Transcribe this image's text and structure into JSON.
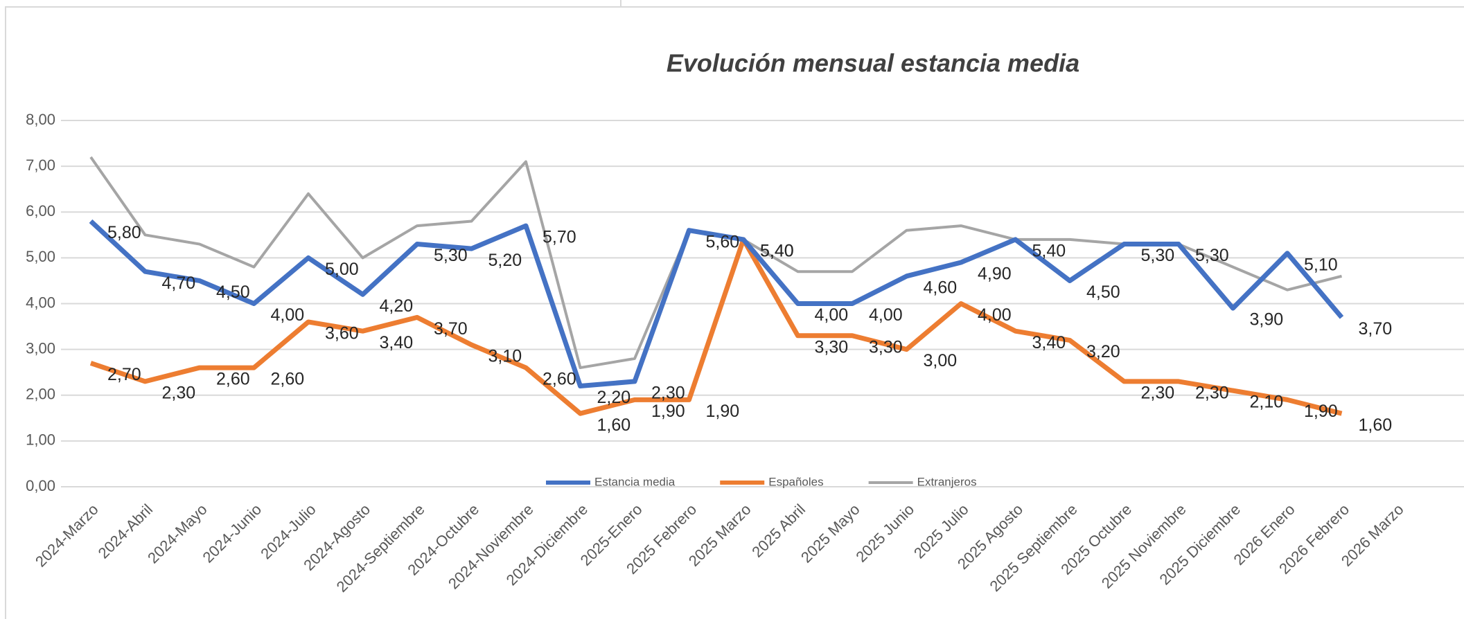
{
  "chart_data": {
    "type": "line",
    "title": "Evolución mensual estancia media",
    "categories": [
      "2024-Marzo",
      "2024-Abril",
      "2024-Mayo",
      "2024-Junio",
      "2024-Julio",
      "2024-Agosto",
      "2024-Septiembre",
      "2024-Octubre",
      "2024-Noviembre",
      "2024-Diciembre",
      "2025-Enero",
      "2025 Febrero",
      "2025 Marzo",
      "2025 Abril",
      "2025 Mayo",
      "2025 Junio",
      "2025 Julio",
      "2025 Agosto",
      "2025 Septiembre",
      "2025 Octubre",
      "2025 Noviembre",
      "2025 Diciembre",
      "2026 Enero",
      "2026 Febrero",
      "2026 Marzo"
    ],
    "series": [
      {
        "name": "Estancia media",
        "color": "#4472c4",
        "values": [
          5.8,
          4.7,
          4.5,
          4.0,
          5.0,
          4.2,
          5.3,
          5.2,
          5.7,
          2.2,
          2.3,
          5.6,
          5.4,
          4.0,
          4.0,
          4.6,
          4.9,
          5.4,
          4.5,
          5.3,
          5.3,
          3.9,
          5.1,
          3.7,
          null
        ],
        "value_labels": [
          "5,80",
          "4,70",
          "4,50",
          "4,00",
          "5,00",
          "4,20",
          "5,30",
          "5,20",
          "5,70",
          "2,20",
          "2,30",
          "5,60",
          "5,40",
          "4,00",
          "4,00",
          "4,60",
          "4,90",
          "5,40",
          "4,50",
          "5,30",
          "5,30",
          "3,90",
          "5,10",
          "3,70",
          null
        ]
      },
      {
        "name": "Españoles",
        "color": "#ed7d31",
        "values": [
          2.7,
          2.3,
          2.6,
          2.6,
          3.6,
          3.4,
          3.7,
          3.1,
          2.6,
          1.6,
          1.9,
          1.9,
          5.4,
          3.3,
          3.3,
          3.0,
          4.0,
          3.4,
          3.2,
          2.3,
          2.3,
          2.1,
          1.9,
          1.6,
          null
        ],
        "value_labels": [
          "2,70",
          "2,30",
          "2,60",
          "2,60",
          "3,60",
          "3,40",
          "3,70",
          "3,10",
          "2,60",
          "1,60",
          "1,90",
          "1,90",
          "5,40",
          "3,30",
          "3,30",
          "3,00",
          "4,00",
          "3,40",
          "3,20",
          "2,30",
          "2,30",
          "2,10",
          "1,90",
          "1,60",
          null
        ]
      },
      {
        "name": "Extranjeros",
        "color": "#a5a5a5",
        "values": [
          7.2,
          5.5,
          5.3,
          4.8,
          6.4,
          5.0,
          5.7,
          5.8,
          7.1,
          2.6,
          2.8,
          5.6,
          5.4,
          4.7,
          4.7,
          5.6,
          5.7,
          5.4,
          5.4,
          5.3,
          5.3,
          4.8,
          4.3,
          4.6,
          null
        ]
      }
    ],
    "ylim": [
      0,
      8
    ],
    "yticks": [
      {
        "value": 0,
        "label": "0,00"
      },
      {
        "value": 1,
        "label": "1,00"
      },
      {
        "value": 2,
        "label": "2,00"
      },
      {
        "value": 3,
        "label": "3,00"
      },
      {
        "value": 4,
        "label": "4,00"
      },
      {
        "value": 5,
        "label": "5,00"
      },
      {
        "value": 6,
        "label": "6,00"
      },
      {
        "value": 7,
        "label": "7,00"
      },
      {
        "value": 8,
        "label": "8,00"
      }
    ],
    "grid": true,
    "legend": "bottom"
  }
}
